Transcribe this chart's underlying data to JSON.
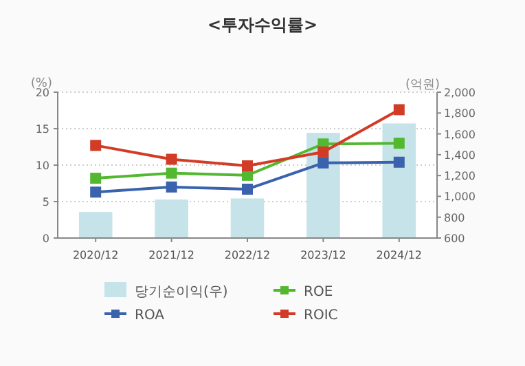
{
  "chart_data": {
    "type": "line",
    "title": "<투자수익률>",
    "ylabel": "(%)",
    "y2label": "(억원)",
    "categories": [
      "2020/12",
      "2021/12",
      "2022/12",
      "2023/12",
      "2024/12"
    ],
    "series": [
      {
        "name": "당기순이익(우)",
        "type": "bar",
        "axis": "y2",
        "color": "#c5e3e8",
        "values": [
          850,
          970,
          980,
          1610,
          1700
        ]
      },
      {
        "name": "ROE",
        "color": "#52b830",
        "values": [
          8.2,
          8.9,
          8.6,
          12.9,
          13.0
        ]
      },
      {
        "name": "ROA",
        "color": "#3a62ad",
        "values": [
          6.3,
          7.0,
          6.7,
          10.3,
          10.4
        ]
      },
      {
        "name": "ROIC",
        "color": "#d23c27",
        "values": [
          12.7,
          10.8,
          9.9,
          11.8,
          17.6
        ]
      }
    ],
    "ylim": [
      0,
      20
    ],
    "yticks": [
      0,
      5,
      10,
      15,
      20
    ],
    "y2lim": [
      600,
      2000
    ],
    "y2ticks": [
      {
        "value": 600,
        "label": "600"
      },
      {
        "value": 800,
        "label": "800"
      },
      {
        "value": 1000,
        "label": "1,000"
      },
      {
        "value": 1200,
        "label": "1,200"
      },
      {
        "value": 1400,
        "label": "1,400"
      },
      {
        "value": 1600,
        "label": "1,600"
      },
      {
        "value": 1800,
        "label": "1,800"
      },
      {
        "value": 2000,
        "label": "2,000"
      }
    ],
    "grid": "y",
    "legend": "bottom",
    "marker": "square"
  }
}
